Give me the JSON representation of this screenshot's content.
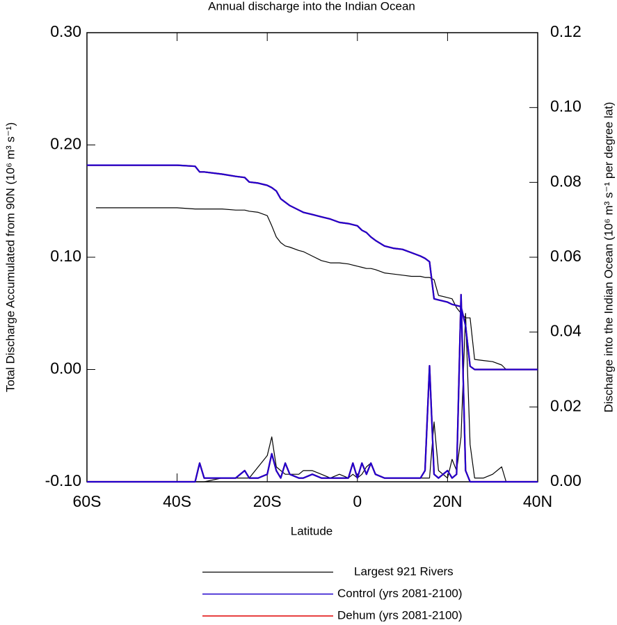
{
  "chart_data": {
    "type": "line",
    "title": "Annual discharge into the Indian Ocean",
    "xlabel": "Latitude",
    "ylabel": "Total Discharge Accumulated from 90N (10⁶ m³ s⁻¹)",
    "y2label": "Discharge into the Indian Ocean (10⁶ m³ s⁻¹  per degree lat)",
    "x": [
      -60,
      -58,
      -50,
      -40,
      -36,
      -35,
      -34,
      -30,
      -27,
      -25,
      -24,
      -22,
      -20,
      -19,
      -18,
      -17,
      -16,
      -15,
      -13,
      -12,
      -10,
      -8,
      -6,
      -4,
      -2,
      -1,
      0,
      1,
      2,
      3,
      4,
      6,
      8,
      10,
      12,
      14,
      15,
      16,
      17,
      18,
      20,
      21,
      22,
      23,
      24,
      25,
      26,
      28,
      30,
      32,
      33,
      36,
      40
    ],
    "xlim": [
      -60,
      40
    ],
    "xticks": [
      {
        "value": -60,
        "label": "60S"
      },
      {
        "value": -40,
        "label": "40S"
      },
      {
        "value": -20,
        "label": "20S"
      },
      0,
      {
        "value": 20,
        "label": "20N"
      },
      {
        "value": 40,
        "label": "40N"
      }
    ],
    "ylim": [
      -0.1,
      0.3
    ],
    "yticks": [
      {
        "value": -0.1,
        "label": "-0.10"
      },
      {
        "value": 0,
        "label": "0.00"
      },
      {
        "value": 0.1,
        "label": "0.10"
      },
      {
        "value": 0.2,
        "label": "0.20"
      },
      {
        "value": 0.3,
        "label": "0.30"
      }
    ],
    "y2lim": [
      0,
      0.12
    ],
    "y2ticks": [
      {
        "value": 0,
        "label": "0.00"
      },
      {
        "value": 0.02,
        "label": "0.02"
      },
      {
        "value": 0.04,
        "label": "0.04"
      },
      {
        "value": 0.06,
        "label": "0.06"
      },
      {
        "value": 0.08,
        "label": "0.08"
      },
      {
        "value": 0.1,
        "label": "0.10"
      },
      {
        "value": 0.12,
        "label": "0.12"
      }
    ],
    "series": [
      {
        "name": "Largest 921 Rivers",
        "color": "#000000",
        "values": [
          null,
          0.144,
          0.144,
          0.144,
          0.143,
          0.143,
          0.143,
          0.143,
          0.142,
          0.142,
          0.141,
          0.14,
          0.137,
          0.128,
          0.118,
          0.113,
          0.11,
          0.109,
          0.106,
          0.105,
          0.101,
          0.097,
          0.095,
          0.095,
          0.094,
          0.093,
          0.092,
          0.091,
          0.09,
          0.09,
          0.089,
          0.086,
          0.085,
          0.084,
          0.083,
          0.083,
          0.082,
          0.082,
          0.08,
          0.066,
          0.064,
          0.063,
          0.055,
          0.05,
          0.046,
          0.046,
          0.009,
          0.008,
          0.007,
          0.004,
          0,
          0,
          0
        ]
      },
      {
        "name": "Control (yrs 2081-2100)",
        "color": "#1f00cc",
        "values": [
          0.182,
          0.182,
          0.182,
          0.182,
          0.181,
          0.176,
          0.176,
          0.174,
          0.172,
          0.171,
          0.167,
          0.166,
          0.164,
          0.162,
          0.159,
          0.152,
          0.149,
          0.146,
          0.142,
          0.14,
          0.138,
          0.136,
          0.134,
          0.131,
          0.13,
          0.129,
          0.128,
          0.124,
          0.122,
          0.118,
          0.115,
          0.11,
          0.108,
          0.107,
          0.104,
          0.101,
          0.099,
          0.096,
          0.063,
          0.062,
          0.06,
          0.058,
          0.057,
          0.056,
          0.039,
          0.003,
          0,
          0,
          0,
          0,
          0,
          0,
          0
        ]
      },
      {
        "name": "Dehum (yrs 2081-2100)",
        "color": "#e00000",
        "values": [
          0.182,
          0.182,
          0.182,
          0.182,
          0.181,
          0.176,
          0.176,
          0.174,
          0.172,
          0.171,
          0.167,
          0.166,
          0.164,
          0.162,
          0.159,
          0.152,
          0.149,
          0.146,
          0.142,
          0.14,
          0.138,
          0.136,
          0.134,
          0.131,
          0.13,
          0.129,
          0.128,
          0.124,
          0.122,
          0.118,
          0.115,
          0.11,
          0.108,
          0.107,
          0.104,
          0.101,
          0.099,
          0.096,
          0.063,
          0.062,
          0.06,
          0.058,
          0.057,
          0.056,
          0.039,
          0.003,
          0,
          0,
          0,
          0,
          0,
          0,
          0
        ]
      },
      {
        "axis": "y2",
        "color": "#000000",
        "values": [
          null,
          0,
          0,
          0,
          0,
          0,
          0,
          0.001,
          0.001,
          0.001,
          0.001,
          0.004,
          0.007,
          0.012,
          0.004,
          0.003,
          0.002,
          0.002,
          0.002,
          0.003,
          0.003,
          0.002,
          0.001,
          0.002,
          0.001,
          0.002,
          0.001,
          0.002,
          0.004,
          0.005,
          0.002,
          0.001,
          0.001,
          0.001,
          0.001,
          0.001,
          0.001,
          0.001,
          0.016,
          0.003,
          0.001,
          0.006,
          0.003,
          0.012,
          0.045,
          0.01,
          0.001,
          0.001,
          0.002,
          0.004,
          0,
          0,
          0
        ]
      },
      {
        "axis": "y2",
        "color": "#e00000",
        "values": [
          0,
          0,
          0,
          0,
          0,
          0.005,
          0.001,
          0.001,
          0.001,
          0.003,
          0.001,
          0.001,
          0.002,
          0.0075,
          0.003,
          0.001,
          0.005,
          0.002,
          0.001,
          0.001,
          0.002,
          0.001,
          0.001,
          0.001,
          0.001,
          0.005,
          0.001,
          0.005,
          0.002,
          0.005,
          0.002,
          0.001,
          0.001,
          0.001,
          0.001,
          0.001,
          0.003,
          0.031,
          0.002,
          0.001,
          0.003,
          0.001,
          0.002,
          0.05,
          0.003,
          0,
          0,
          0,
          0,
          0,
          0,
          0,
          0
        ]
      },
      {
        "axis": "y2",
        "color": "#1f00cc",
        "values": [
          0,
          0,
          0,
          0,
          0,
          0.005,
          0.001,
          0.001,
          0.001,
          0.003,
          0.001,
          0.001,
          0.002,
          0.0075,
          0.003,
          0.001,
          0.005,
          0.002,
          0.001,
          0.001,
          0.002,
          0.001,
          0.001,
          0.001,
          0.001,
          0.005,
          0.001,
          0.005,
          0.002,
          0.005,
          0.002,
          0.001,
          0.001,
          0.001,
          0.001,
          0.001,
          0.003,
          0.031,
          0.002,
          0.001,
          0.003,
          0.001,
          0.002,
          0.05,
          0.003,
          0,
          0,
          0,
          0,
          0,
          0,
          0,
          0
        ]
      }
    ]
  }
}
